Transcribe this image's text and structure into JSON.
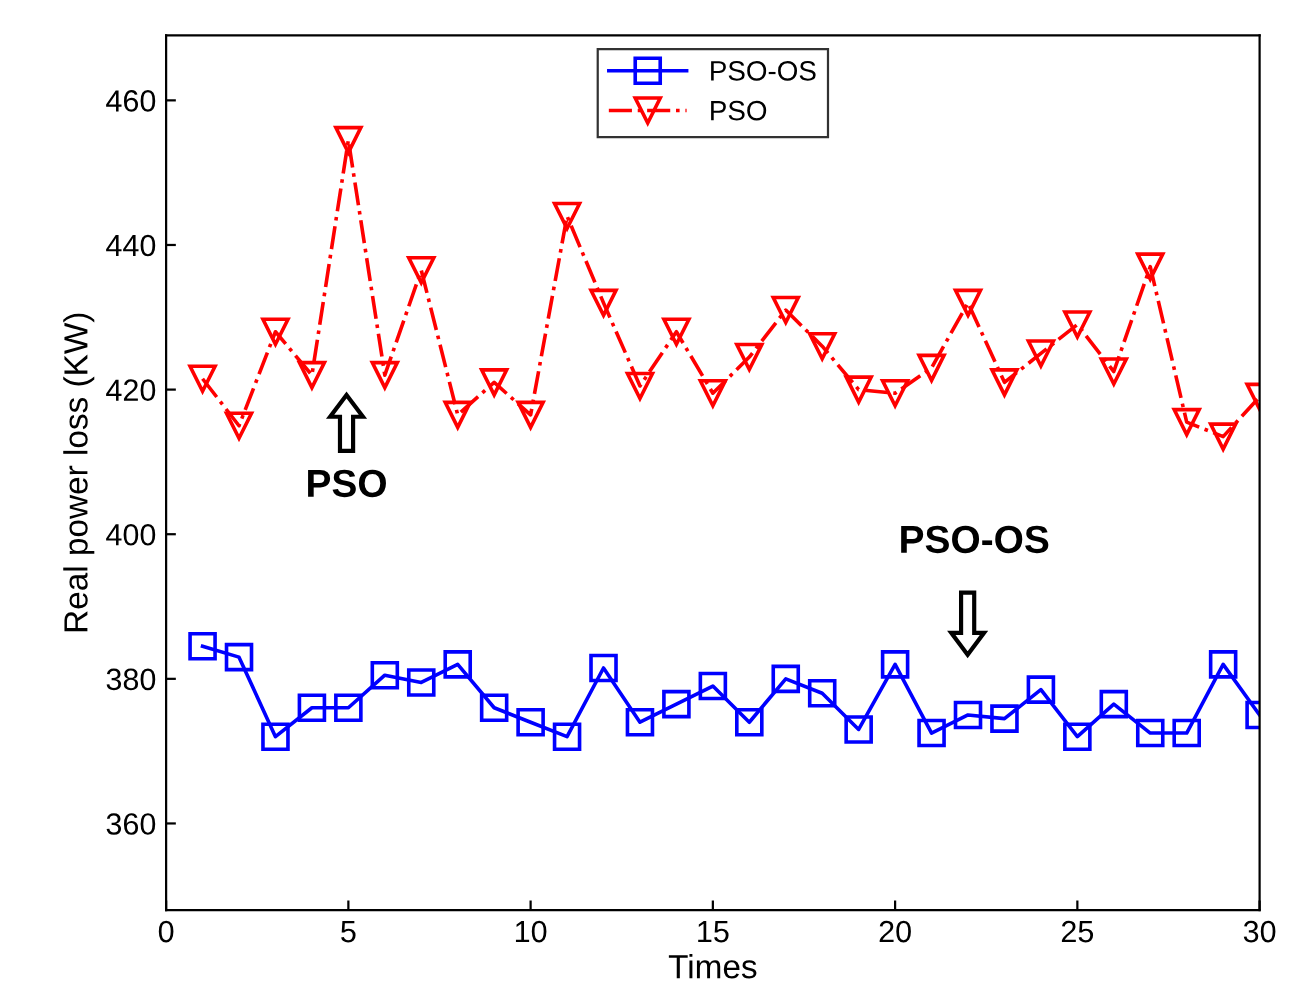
{
  "chart_data": {
    "type": "line",
    "xlabel": "Times",
    "ylabel": "Real power loss (KW)",
    "x": [
      1,
      2,
      3,
      4,
      5,
      6,
      7,
      8,
      9,
      10,
      11,
      12,
      13,
      14,
      15,
      16,
      17,
      18,
      19,
      20,
      21,
      22,
      23,
      24,
      25,
      26,
      27,
      28,
      29,
      30
    ],
    "series": [
      {
        "name": "PSO-OS",
        "color": "#0000ff",
        "marker": "square",
        "line_style": "solid",
        "values": [
          384.5,
          383,
          372,
          376,
          376,
          380.5,
          379.5,
          382,
          376,
          374,
          372,
          381.5,
          374,
          376.5,
          379,
          374,
          380,
          378,
          373,
          382,
          372.5,
          375,
          374.5,
          378.5,
          372,
          376.5,
          372.5,
          372.5,
          382,
          375
        ]
      },
      {
        "name": "PSO",
        "color": "#ff0000",
        "marker": "triangle",
        "line_style": "dashdot",
        "values": [
          421.5,
          415,
          428,
          422,
          454.5,
          422,
          436.5,
          416.5,
          421,
          416.5,
          444,
          432,
          420.5,
          428,
          419.5,
          424.5,
          431,
          426,
          420,
          419.5,
          423,
          432,
          421,
          425,
          429,
          422.5,
          437,
          415.5,
          413.5,
          419
        ]
      }
    ],
    "xlim": [
      0,
      30
    ],
    "xticks": [
      0,
      5,
      10,
      15,
      20,
      25,
      30
    ],
    "ylim": [
      348,
      469
    ],
    "yticks": [
      360,
      380,
      400,
      420,
      440,
      460
    ],
    "grid": false,
    "legend": "top",
    "annotations": [
      "PSO",
      "PSO-OS"
    ]
  }
}
